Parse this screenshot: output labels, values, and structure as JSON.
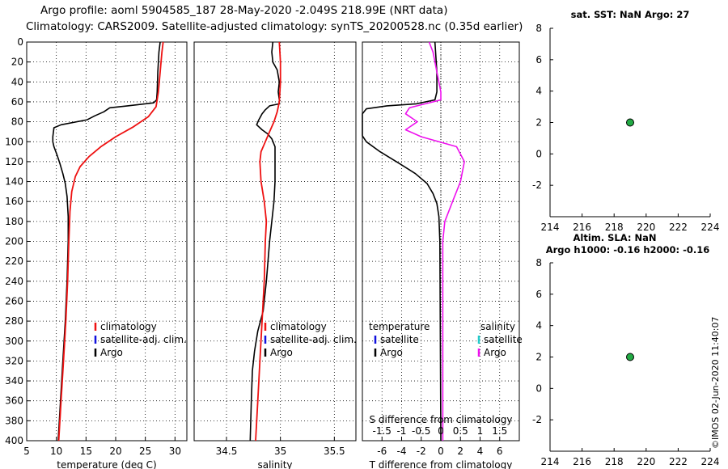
{
  "header": {
    "line1": "Argo profile: aoml 5904585_187 28-May-2020 -2.049S 218.99E (NRT data)",
    "line2": "Climatology: CARS2009. Satellite-adjusted climatology: synTS_20200528.nc (0.35d earlier)"
  },
  "watermark": "©IMOS 02-Jun-2020 11:40:07",
  "colors": {
    "climatology": "#ee1111",
    "satellite": "#1111dd",
    "argo": "#000000",
    "sat_salinity": "#22cccc",
    "argo_salinity": "#ee11ee",
    "marker": "#22aa44"
  },
  "chart_data": [
    {
      "type": "line",
      "name": "temperature",
      "xlabel": "temperature (deg C)",
      "ylabel": "",
      "xlim": [
        5,
        32
      ],
      "ylim": [
        400,
        0
      ],
      "xticks": [
        5,
        10,
        15,
        20,
        25,
        30
      ],
      "yticks": [
        0,
        20,
        40,
        60,
        80,
        100,
        120,
        140,
        160,
        180,
        200,
        220,
        240,
        260,
        280,
        300,
        320,
        340,
        360,
        380,
        400
      ],
      "legend": [
        "climatology",
        "satellite-adj. clim.",
        "Argo"
      ],
      "series": [
        {
          "name": "climatology",
          "points": [
            [
              28.0,
              0
            ],
            [
              27.8,
              10
            ],
            [
              27.5,
              30
            ],
            [
              27.2,
              50
            ],
            [
              26.8,
              65
            ],
            [
              25.5,
              75
            ],
            [
              23,
              85
            ],
            [
              20,
              95
            ],
            [
              17.5,
              105
            ],
            [
              15.5,
              115
            ],
            [
              14,
              125
            ],
            [
              13.2,
              135
            ],
            [
              12.6,
              150
            ],
            [
              12.3,
              170
            ],
            [
              12.1,
              200
            ],
            [
              11.9,
              240
            ],
            [
              11.6,
              280
            ],
            [
              11.2,
              320
            ],
            [
              10.8,
              360
            ],
            [
              10.4,
              400
            ]
          ]
        },
        {
          "name": "Argo",
          "points": [
            [
              27.5,
              0
            ],
            [
              27.3,
              10
            ],
            [
              27.1,
              30
            ],
            [
              27.0,
              50
            ],
            [
              26.9,
              58
            ],
            [
              26.4,
              61
            ],
            [
              22,
              64
            ],
            [
              19,
              66
            ],
            [
              18,
              70
            ],
            [
              16.5,
              74
            ],
            [
              15.2,
              78
            ],
            [
              10.8,
              83
            ],
            [
              9.6,
              86
            ],
            [
              9.4,
              95
            ],
            [
              9.4,
              100
            ],
            [
              9.6,
              105
            ],
            [
              10.1,
              113
            ],
            [
              10.6,
              122
            ],
            [
              11.1,
              132
            ],
            [
              11.5,
              142
            ],
            [
              11.8,
              155
            ],
            [
              12.0,
              175
            ],
            [
              12.0,
              200
            ],
            [
              11.8,
              240
            ],
            [
              11.5,
              280
            ],
            [
              11.1,
              320
            ],
            [
              10.7,
              360
            ],
            [
              10.3,
              400
            ]
          ]
        }
      ]
    },
    {
      "type": "line",
      "name": "salinity",
      "xlabel": "salinity",
      "xlim": [
        34.2,
        35.7
      ],
      "ylim": [
        400,
        0
      ],
      "xticks": [
        34.5,
        35,
        35.5
      ],
      "legend": [
        "climatology",
        "satellite-adj. clim.",
        "Argo"
      ],
      "series": [
        {
          "name": "climatology",
          "points": [
            [
              34.99,
              0
            ],
            [
              35.0,
              20
            ],
            [
              35.0,
              40
            ],
            [
              34.99,
              60
            ],
            [
              34.97,
              70
            ],
            [
              34.94,
              80
            ],
            [
              34.9,
              90
            ],
            [
              34.86,
              100
            ],
            [
              34.82,
              110
            ],
            [
              34.81,
              120
            ],
            [
              34.82,
              140
            ],
            [
              34.85,
              160
            ],
            [
              34.87,
              180
            ],
            [
              34.86,
              200
            ],
            [
              34.85,
              240
            ],
            [
              34.83,
              280
            ],
            [
              34.81,
              320
            ],
            [
              34.79,
              360
            ],
            [
              34.77,
              400
            ]
          ]
        },
        {
          "name": "Argo",
          "points": [
            [
              34.93,
              0
            ],
            [
              34.92,
              10
            ],
            [
              34.93,
              20
            ],
            [
              34.97,
              28
            ],
            [
              34.99,
              40
            ],
            [
              34.98,
              50
            ],
            [
              34.99,
              58
            ],
            [
              34.99,
              62
            ],
            [
              34.9,
              64
            ],
            [
              34.86,
              68
            ],
            [
              34.83,
              72
            ],
            [
              34.8,
              78
            ],
            [
              34.78,
              83
            ],
            [
              34.83,
              88
            ],
            [
              34.88,
              92
            ],
            [
              34.92,
              97
            ],
            [
              34.95,
              105
            ],
            [
              34.95,
              140
            ],
            [
              34.94,
              160
            ],
            [
              34.92,
              180
            ],
            [
              34.9,
              200
            ],
            [
              34.87,
              240
            ],
            [
              34.84,
              270
            ],
            [
              34.79,
              290
            ],
            [
              34.76,
              310
            ],
            [
              34.74,
              330
            ],
            [
              34.73,
              360
            ],
            [
              34.72,
              400
            ]
          ]
        }
      ]
    },
    {
      "type": "line",
      "name": "difference",
      "xlabel": "T difference from climatology",
      "top_axis_label": "S difference from climatology",
      "xlim": [
        -8,
        8
      ],
      "ylim": [
        400,
        0
      ],
      "xticks": [
        -6,
        -4,
        -2,
        0,
        2,
        4,
        6
      ],
      "sticks": [
        -1.5,
        -1,
        -0.5,
        0,
        0.5,
        1,
        1.5
      ],
      "legend_left_title": "temperature",
      "legend_right_title": "salinity",
      "legend_left": [
        "satellite",
        "Argo"
      ],
      "legend_right": [
        "satellite",
        "Argo"
      ],
      "series": [
        {
          "name": "T difference (Argo)",
          "points": [
            [
              -0.6,
              0
            ],
            [
              -0.5,
              15
            ],
            [
              -0.4,
              30
            ],
            [
              -0.4,
              50
            ],
            [
              -0.6,
              58
            ],
            [
              -2.5,
              62
            ],
            [
              -5.5,
              64
            ],
            [
              -7.6,
              67
            ],
            [
              -8,
              72
            ],
            [
              -8,
              84
            ],
            [
              -8,
              94
            ],
            [
              -7.6,
              100
            ],
            [
              -6.2,
              110
            ],
            [
              -4.2,
              122
            ],
            [
              -2.6,
              132
            ],
            [
              -1.4,
              142
            ],
            [
              -0.8,
              152
            ],
            [
              -0.4,
              162
            ],
            [
              -0.2,
              175
            ],
            [
              -0.1,
              200
            ],
            [
              -0.05,
              300
            ],
            [
              0,
              400
            ]
          ]
        },
        {
          "name": "S difference (Argo)",
          "points": [
            [
              -0.3,
              0
            ],
            [
              -0.2,
              10
            ],
            [
              -0.1,
              30
            ],
            [
              0,
              50
            ],
            [
              0,
              58
            ],
            [
              -0.4,
              62
            ],
            [
              -0.8,
              66
            ],
            [
              -0.9,
              72
            ],
            [
              -0.6,
              80
            ],
            [
              -0.9,
              88
            ],
            [
              -0.5,
              95
            ],
            [
              0.4,
              105
            ],
            [
              0.6,
              120
            ],
            [
              0.5,
              140
            ],
            [
              0.3,
              160
            ],
            [
              0.1,
              180
            ],
            [
              0.05,
              200
            ],
            [
              0.05,
              300
            ],
            [
              0.05,
              400
            ]
          ]
        }
      ]
    },
    {
      "type": "scatter",
      "name": "sat-sst",
      "title": "sat. SST: NaN Argo: 27",
      "xlim": [
        214,
        224
      ],
      "ylim": [
        -4,
        8
      ],
      "xticks": [
        214,
        216,
        218,
        220,
        222,
        224
      ],
      "yticks": [
        -2,
        0,
        2,
        4,
        6,
        8
      ],
      "points": [
        [
          219,
          2
        ]
      ]
    },
    {
      "type": "scatter",
      "name": "altim",
      "title": "Altim. SLA: NaN",
      "subtitle": "Argo h1000: -0.16 h2000: -0.16",
      "xlim": [
        214,
        224
      ],
      "ylim": [
        -4,
        8
      ],
      "xticks": [
        214,
        216,
        218,
        220,
        222,
        224
      ],
      "yticks": [
        -2,
        0,
        2,
        4,
        6,
        8
      ],
      "points": [
        [
          219,
          2
        ]
      ]
    }
  ]
}
